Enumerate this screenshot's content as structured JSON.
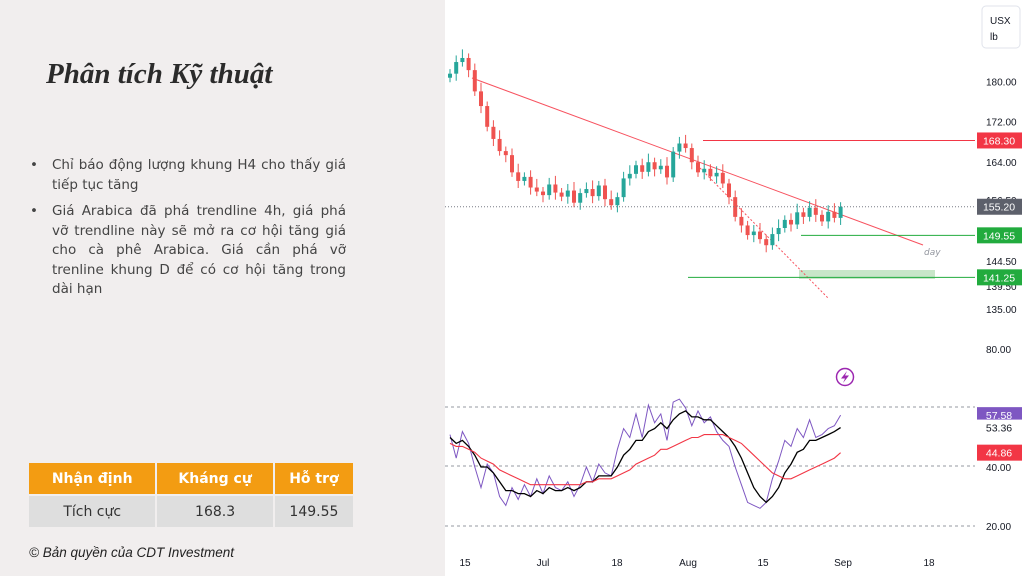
{
  "slide": {
    "title": "Phân tích Kỹ thuật",
    "bullets": [
      "Chỉ báo động lượng khung H4 cho thấy giá tiếp tục tăng",
      "Giá Arabica đã phá trendline 4h, giá phá vỡ trendline này sẽ mở ra cơ hội tăng giá cho cà phê Arabica. Giá cần phá vỡ trenline khung D để có cơ hội tăng trong dài hạn"
    ],
    "bullet_symbol": "•",
    "table": {
      "headers": [
        "Nhận định",
        "Kháng cự",
        "Hỗ trợ"
      ],
      "row": [
        "Tích cực",
        "168.3",
        "149.55"
      ]
    },
    "copyright": "© Bản quyền của CDT Investment"
  },
  "colors": {
    "header_orange": "#f39c12",
    "candle_up": "#26a69a",
    "candle_down": "#ef5350",
    "resistance_line": "#f23645",
    "support_line": "#22ab3e",
    "support_zone": "#c8e6c9",
    "trendline": "#f7525f",
    "rsi_line": "#7e57c2",
    "fast_line": "#000000",
    "slow_line": "#f23645"
  },
  "chart_data": [
    {
      "type": "candlestick",
      "symbol_box": [
        "USX",
        "lb"
      ],
      "price_axis_ticks": [
        "180.00",
        "172.00",
        "164.00",
        "156.50",
        "150.50",
        "144.50",
        "139.50",
        "135.00"
      ],
      "x_ticks": [
        "15",
        "Jul",
        "18",
        "Aug",
        "15",
        "Sep",
        "18"
      ],
      "ylim": [
        132,
        192
      ],
      "last_price": 155.2,
      "last_price_label": "155.20",
      "levels": [
        {
          "label": "168.30",
          "value": 168.3,
          "kind": "resistance"
        },
        {
          "label": "149.55",
          "value": 149.55,
          "kind": "support"
        },
        {
          "label": "141.25",
          "value": 141.25,
          "kind": "support"
        }
      ],
      "trendline_label": "day",
      "closes": [
        181.5,
        183.8,
        184.6,
        182.2,
        178.0,
        175.1,
        171.0,
        168.6,
        166.2,
        165.4,
        162.0,
        160.3,
        161.1,
        159.0,
        158.2,
        157.5,
        159.6,
        158.0,
        157.2,
        158.4,
        156.0,
        157.9,
        158.7,
        157.3,
        159.4,
        156.7,
        155.5,
        157.1,
        160.8,
        161.7,
        163.4,
        162.1,
        164.0,
        162.6,
        163.3,
        161.0,
        166.1,
        167.7,
        166.8,
        164.0,
        162.0,
        162.7,
        161.2,
        161.9,
        159.8,
        157.1,
        153.2,
        151.5,
        149.6,
        150.3,
        148.8,
        147.6,
        149.8,
        151.0,
        152.6,
        151.7,
        154.1,
        153.2,
        155.0,
        153.6,
        152.3,
        154.2,
        153.0,
        155.2
      ]
    },
    {
      "type": "line",
      "indicator": "momentum",
      "y_ticks": [
        "80.00",
        "40.00",
        "20.00"
      ],
      "ylim": [
        12,
        88
      ],
      "value_labels": [
        "57.58",
        "53.36",
        "44.86"
      ],
      "series": [
        {
          "values": [
            51,
            43,
            52,
            48,
            40,
            33,
            41,
            38,
            30,
            27,
            33,
            29,
            34,
            30,
            36,
            31,
            37,
            33,
            32,
            35,
            30,
            34,
            40,
            35,
            41,
            38,
            37,
            46,
            53,
            50,
            58,
            50,
            61,
            55,
            58,
            49,
            62,
            63,
            60,
            54,
            59,
            55,
            57,
            52,
            49,
            47,
            40,
            34,
            28,
            27,
            26,
            28,
            36,
            42,
            49,
            47,
            53,
            50,
            56,
            50,
            51,
            53,
            54,
            57.58
          ]
        },
        {
          "values": [
            50,
            48,
            49,
            47,
            44,
            40,
            40,
            38,
            35,
            32,
            32,
            31,
            31,
            30,
            32,
            31,
            33,
            32,
            32,
            33,
            32,
            33,
            35,
            35,
            37,
            37,
            37,
            40,
            44,
            46,
            49,
            49,
            52,
            53,
            55,
            53,
            56,
            58,
            59,
            57,
            57,
            56,
            56,
            54,
            52,
            50,
            47,
            43,
            38,
            33,
            30,
            28,
            30,
            33,
            38,
            41,
            45,
            46,
            49,
            49,
            50,
            51,
            52,
            53.36
          ]
        },
        {
          "values": [
            48,
            47,
            47,
            46,
            45,
            43,
            42,
            41,
            39,
            38,
            37,
            36,
            35,
            34,
            34,
            34,
            34,
            34,
            34,
            34,
            34,
            34,
            35,
            35,
            36,
            36,
            36,
            37,
            38,
            39,
            41,
            42,
            43,
            44,
            46,
            46,
            47,
            48,
            49,
            50,
            50,
            51,
            51,
            51,
            51,
            50,
            49,
            48,
            46,
            44,
            42,
            40,
            38,
            37,
            36,
            36,
            37,
            38,
            39,
            40,
            41,
            42,
            43,
            44.86
          ]
        }
      ]
    }
  ]
}
